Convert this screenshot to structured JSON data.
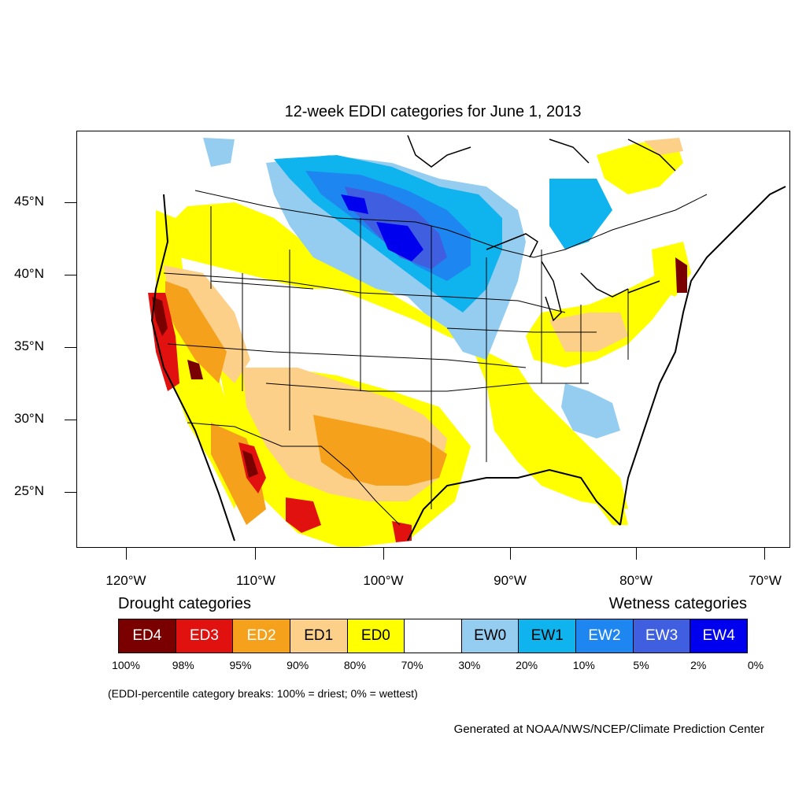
{
  "title": "12-week EDDI categories for June 1, 2013",
  "map": {
    "lat_labels": [
      "45°N",
      "40°N",
      "35°N",
      "30°N",
      "25°N"
    ],
    "lon_labels": [
      "120°W",
      "110°W",
      "100°W",
      "90°W",
      "80°W",
      "70°W"
    ]
  },
  "legend": {
    "drought_heading": "Drought categories",
    "wetness_heading": "Wetness categories",
    "categories": [
      {
        "label": "ED4",
        "color": "#7a0000",
        "text_color": "#ffffff"
      },
      {
        "label": "ED3",
        "color": "#e0110f",
        "text_color": "#ffffff"
      },
      {
        "label": "ED2",
        "color": "#f6a11b",
        "text_color": "#ffffff"
      },
      {
        "label": "ED1",
        "color": "#fdd08a",
        "text_color": "#000000"
      },
      {
        "label": "ED0",
        "color": "#ffff00",
        "text_color": "#000000"
      },
      {
        "label": "",
        "color": "#ffffff",
        "text_color": "#000000"
      },
      {
        "label": "EW0",
        "color": "#95cdf0",
        "text_color": "#000000"
      },
      {
        "label": "EW1",
        "color": "#0fb3ee",
        "text_color": "#000000"
      },
      {
        "label": "EW2",
        "color": "#1e86f0",
        "text_color": "#ffffff"
      },
      {
        "label": "EW3",
        "color": "#3f5fe0",
        "text_color": "#ffffff"
      },
      {
        "label": "EW4",
        "color": "#0000ee",
        "text_color": "#ffffff"
      }
    ],
    "percentiles": [
      "100%",
      "98%",
      "95%",
      "90%",
      "80%",
      "70%",
      "30%",
      "20%",
      "10%",
      "5%",
      "2%",
      "0%"
    ]
  },
  "note": "(EDDI-percentile category breaks: 100% = driest; 0% = wettest)",
  "credit": "Generated at NOAA/NWS/NCEP/Climate Prediction Center"
}
